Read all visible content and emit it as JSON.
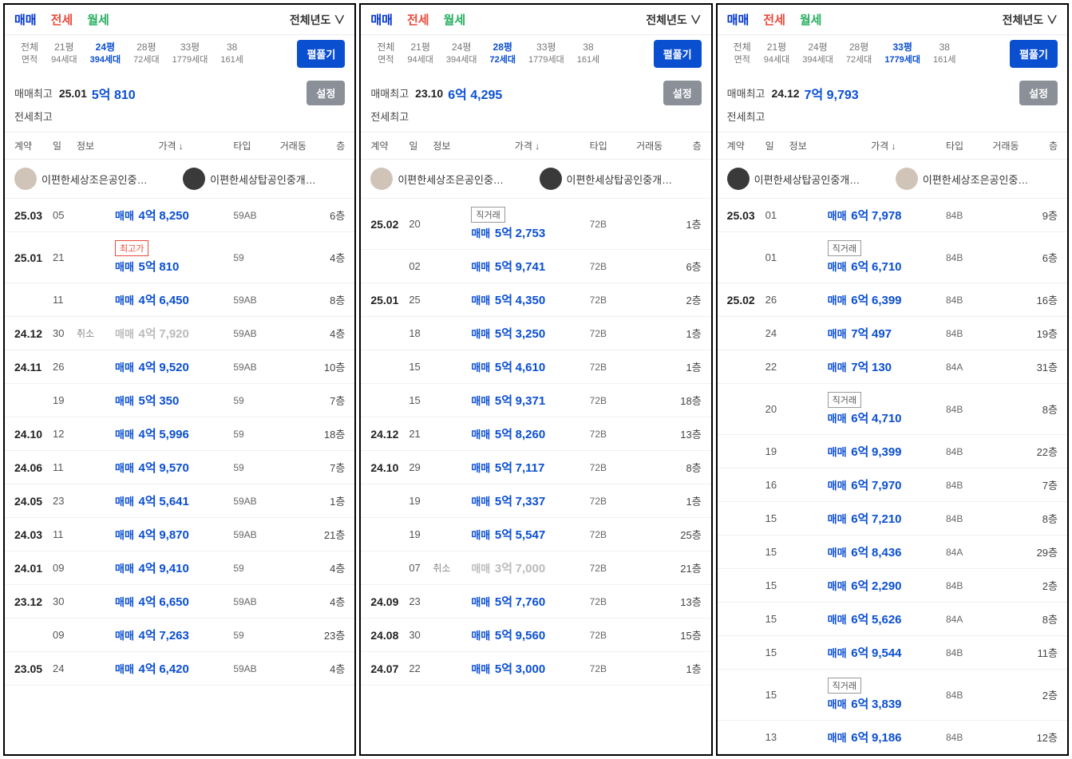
{
  "common": {
    "tabs": {
      "sale": "매매",
      "jeonse": "전세",
      "monthly": "월세"
    },
    "yearSelector": "전체년도 ∨",
    "unfoldBtn": "펼풀기",
    "settingsBtn": "설정",
    "maxSaleLabel": "매매최고",
    "maxJeonseLabel": "전세최고",
    "headers": {
      "contract": "계약",
      "day": "일",
      "info": "정보",
      "price": "가격 ↓",
      "type": "타입",
      "dong": "거래동",
      "floor": "층"
    },
    "agent1": "이편한세상조은공인중…",
    "agent2": "이편한세상탑공인중개…",
    "badges": {
      "high": "최고가",
      "direct": "직거래"
    },
    "sizeHeader": {
      "all1": "전체",
      "all2": "면적"
    }
  },
  "panels": [
    {
      "sizes": [
        {
          "t": "21평",
          "b": "94세대"
        },
        {
          "t": "24평",
          "b": "394세대",
          "active": true
        },
        {
          "t": "28평",
          "b": "72세대"
        },
        {
          "t": "33평",
          "b": "1779세대"
        },
        {
          "t": "38",
          "b": "161세"
        }
      ],
      "max": {
        "date": "25.01",
        "eok": "5억",
        "rest": "810"
      },
      "rows": [
        {
          "ym": "25.03",
          "d": "05",
          "pre": "매매",
          "eok": "4억",
          "rest": "8,250",
          "type": "59AB",
          "fl": "6층"
        },
        {
          "ym": "25.01",
          "d": "21",
          "badge": "high",
          "pre": "매매",
          "eok": "5억",
          "rest": "810",
          "type": "59",
          "fl": "4층"
        },
        {
          "ym": "",
          "d": "11",
          "pre": "매매",
          "eok": "4억",
          "rest": "6,450",
          "type": "59AB",
          "fl": "8층"
        },
        {
          "ym": "24.12",
          "d": "30",
          "info": "취소",
          "cancel": true,
          "pre": "매매",
          "eok": "4억",
          "rest": "7,920",
          "type": "59AB",
          "fl": "4층"
        },
        {
          "ym": "24.11",
          "d": "26",
          "pre": "매매",
          "eok": "4억",
          "rest": "9,520",
          "type": "59AB",
          "fl": "10층"
        },
        {
          "ym": "",
          "d": "19",
          "pre": "매매",
          "eok": "5억",
          "rest": "350",
          "type": "59",
          "fl": "7층"
        },
        {
          "ym": "24.10",
          "d": "12",
          "pre": "매매",
          "eok": "4억",
          "rest": "5,996",
          "type": "59",
          "fl": "18층"
        },
        {
          "ym": "24.06",
          "d": "11",
          "pre": "매매",
          "eok": "4억",
          "rest": "9,570",
          "type": "59",
          "fl": "7층"
        },
        {
          "ym": "24.05",
          "d": "23",
          "pre": "매매",
          "eok": "4억",
          "rest": "5,641",
          "type": "59AB",
          "fl": "1층"
        },
        {
          "ym": "24.03",
          "d": "11",
          "pre": "매매",
          "eok": "4억",
          "rest": "9,870",
          "type": "59AB",
          "fl": "21층"
        },
        {
          "ym": "24.01",
          "d": "09",
          "pre": "매매",
          "eok": "4억",
          "rest": "9,410",
          "type": "59",
          "fl": "4층"
        },
        {
          "ym": "23.12",
          "d": "30",
          "pre": "매매",
          "eok": "4억",
          "rest": "6,650",
          "type": "59AB",
          "fl": "4층"
        },
        {
          "ym": "",
          "d": "09",
          "pre": "매매",
          "eok": "4억",
          "rest": "7,263",
          "type": "59",
          "fl": "23층"
        },
        {
          "ym": "23.05",
          "d": "24",
          "pre": "매매",
          "eok": "4억",
          "rest": "6,420",
          "type": "59AB",
          "fl": "4층"
        }
      ]
    },
    {
      "sizes": [
        {
          "t": "21평",
          "b": "94세대"
        },
        {
          "t": "24평",
          "b": "394세대"
        },
        {
          "t": "28평",
          "b": "72세대",
          "active": true
        },
        {
          "t": "33평",
          "b": "1779세대"
        },
        {
          "t": "38",
          "b": "161세"
        }
      ],
      "max": {
        "date": "23.10",
        "eok": "6억",
        "rest": "4,295"
      },
      "rows": [
        {
          "ym": "25.02",
          "d": "20",
          "badge": "direct",
          "pre": "매매",
          "eok": "5억",
          "rest": "2,753",
          "type": "72B",
          "fl": "1층"
        },
        {
          "ym": "",
          "d": "02",
          "pre": "매매",
          "eok": "5억",
          "rest": "9,741",
          "type": "72B",
          "fl": "6층"
        },
        {
          "ym": "25.01",
          "d": "25",
          "pre": "매매",
          "eok": "5억",
          "rest": "4,350",
          "type": "72B",
          "fl": "2층"
        },
        {
          "ym": "",
          "d": "18",
          "pre": "매매",
          "eok": "5억",
          "rest": "3,250",
          "type": "72B",
          "fl": "1층"
        },
        {
          "ym": "",
          "d": "15",
          "pre": "매매",
          "eok": "5억",
          "rest": "4,610",
          "type": "72B",
          "fl": "1층"
        },
        {
          "ym": "",
          "d": "15",
          "pre": "매매",
          "eok": "5억",
          "rest": "9,371",
          "type": "72B",
          "fl": "18층"
        },
        {
          "ym": "24.12",
          "d": "21",
          "pre": "매매",
          "eok": "5억",
          "rest": "8,260",
          "type": "72B",
          "fl": "13층"
        },
        {
          "ym": "24.10",
          "d": "29",
          "pre": "매매",
          "eok": "5억",
          "rest": "7,117",
          "type": "72B",
          "fl": "8층"
        },
        {
          "ym": "",
          "d": "19",
          "pre": "매매",
          "eok": "5억",
          "rest": "7,337",
          "type": "72B",
          "fl": "1층"
        },
        {
          "ym": "",
          "d": "19",
          "pre": "매매",
          "eok": "5억",
          "rest": "5,547",
          "type": "72B",
          "fl": "25층"
        },
        {
          "ym": "",
          "d": "07",
          "info": "취소",
          "cancel": true,
          "pre": "매매",
          "eok": "3억",
          "rest": "7,000",
          "type": "72B",
          "fl": "21층"
        },
        {
          "ym": "24.09",
          "d": "23",
          "pre": "매매",
          "eok": "5억",
          "rest": "7,760",
          "type": "72B",
          "fl": "13층"
        },
        {
          "ym": "24.08",
          "d": "30",
          "pre": "매매",
          "eok": "5억",
          "rest": "9,560",
          "type": "72B",
          "fl": "15층"
        },
        {
          "ym": "24.07",
          "d": "22",
          "pre": "매매",
          "eok": "5억",
          "rest": "3,000",
          "type": "72B",
          "fl": "1층"
        }
      ]
    },
    {
      "sizes": [
        {
          "t": "21평",
          "b": "94세대"
        },
        {
          "t": "24평",
          "b": "394세대"
        },
        {
          "t": "28평",
          "b": "72세대"
        },
        {
          "t": "33평",
          "b": "1779세대",
          "active": true
        },
        {
          "t": "38",
          "b": "161세"
        }
      ],
      "max": {
        "date": "24.12",
        "eok": "7억",
        "rest": "9,793"
      },
      "agentSwap": true,
      "rows": [
        {
          "ym": "25.03",
          "d": "01",
          "pre": "매매",
          "eok": "6억",
          "rest": "7,978",
          "type": "84B",
          "fl": "9층"
        },
        {
          "ym": "",
          "d": "01",
          "badge": "direct",
          "pre": "매매",
          "eok": "6억",
          "rest": "6,710",
          "type": "84B",
          "fl": "6층"
        },
        {
          "ym": "25.02",
          "d": "26",
          "pre": "매매",
          "eok": "6억",
          "rest": "6,399",
          "type": "84B",
          "fl": "16층"
        },
        {
          "ym": "",
          "d": "24",
          "pre": "매매",
          "eok": "7억",
          "rest": "497",
          "type": "84B",
          "fl": "19층"
        },
        {
          "ym": "",
          "d": "22",
          "pre": "매매",
          "eok": "7억",
          "rest": "130",
          "type": "84A",
          "fl": "31층"
        },
        {
          "ym": "",
          "d": "20",
          "badge": "direct",
          "pre": "매매",
          "eok": "6억",
          "rest": "4,710",
          "type": "84B",
          "fl": "8층"
        },
        {
          "ym": "",
          "d": "19",
          "pre": "매매",
          "eok": "6억",
          "rest": "9,399",
          "type": "84B",
          "fl": "22층"
        },
        {
          "ym": "",
          "d": "16",
          "pre": "매매",
          "eok": "6억",
          "rest": "7,970",
          "type": "84B",
          "fl": "7층"
        },
        {
          "ym": "",
          "d": "15",
          "pre": "매매",
          "eok": "6억",
          "rest": "7,210",
          "type": "84B",
          "fl": "8층"
        },
        {
          "ym": "",
          "d": "15",
          "pre": "매매",
          "eok": "6억",
          "rest": "8,436",
          "type": "84A",
          "fl": "29층"
        },
        {
          "ym": "",
          "d": "15",
          "pre": "매매",
          "eok": "6억",
          "rest": "2,290",
          "type": "84B",
          "fl": "2층"
        },
        {
          "ym": "",
          "d": "15",
          "pre": "매매",
          "eok": "6억",
          "rest": "5,626",
          "type": "84A",
          "fl": "8층"
        },
        {
          "ym": "",
          "d": "15",
          "pre": "매매",
          "eok": "6억",
          "rest": "9,544",
          "type": "84B",
          "fl": "11층"
        },
        {
          "ym": "",
          "d": "15",
          "badge": "direct",
          "pre": "매매",
          "eok": "6억",
          "rest": "3,839",
          "type": "84B",
          "fl": "2층"
        },
        {
          "ym": "",
          "d": "13",
          "pre": "매매",
          "eok": "6억",
          "rest": "9,186",
          "type": "84B",
          "fl": "12층"
        }
      ]
    }
  ]
}
